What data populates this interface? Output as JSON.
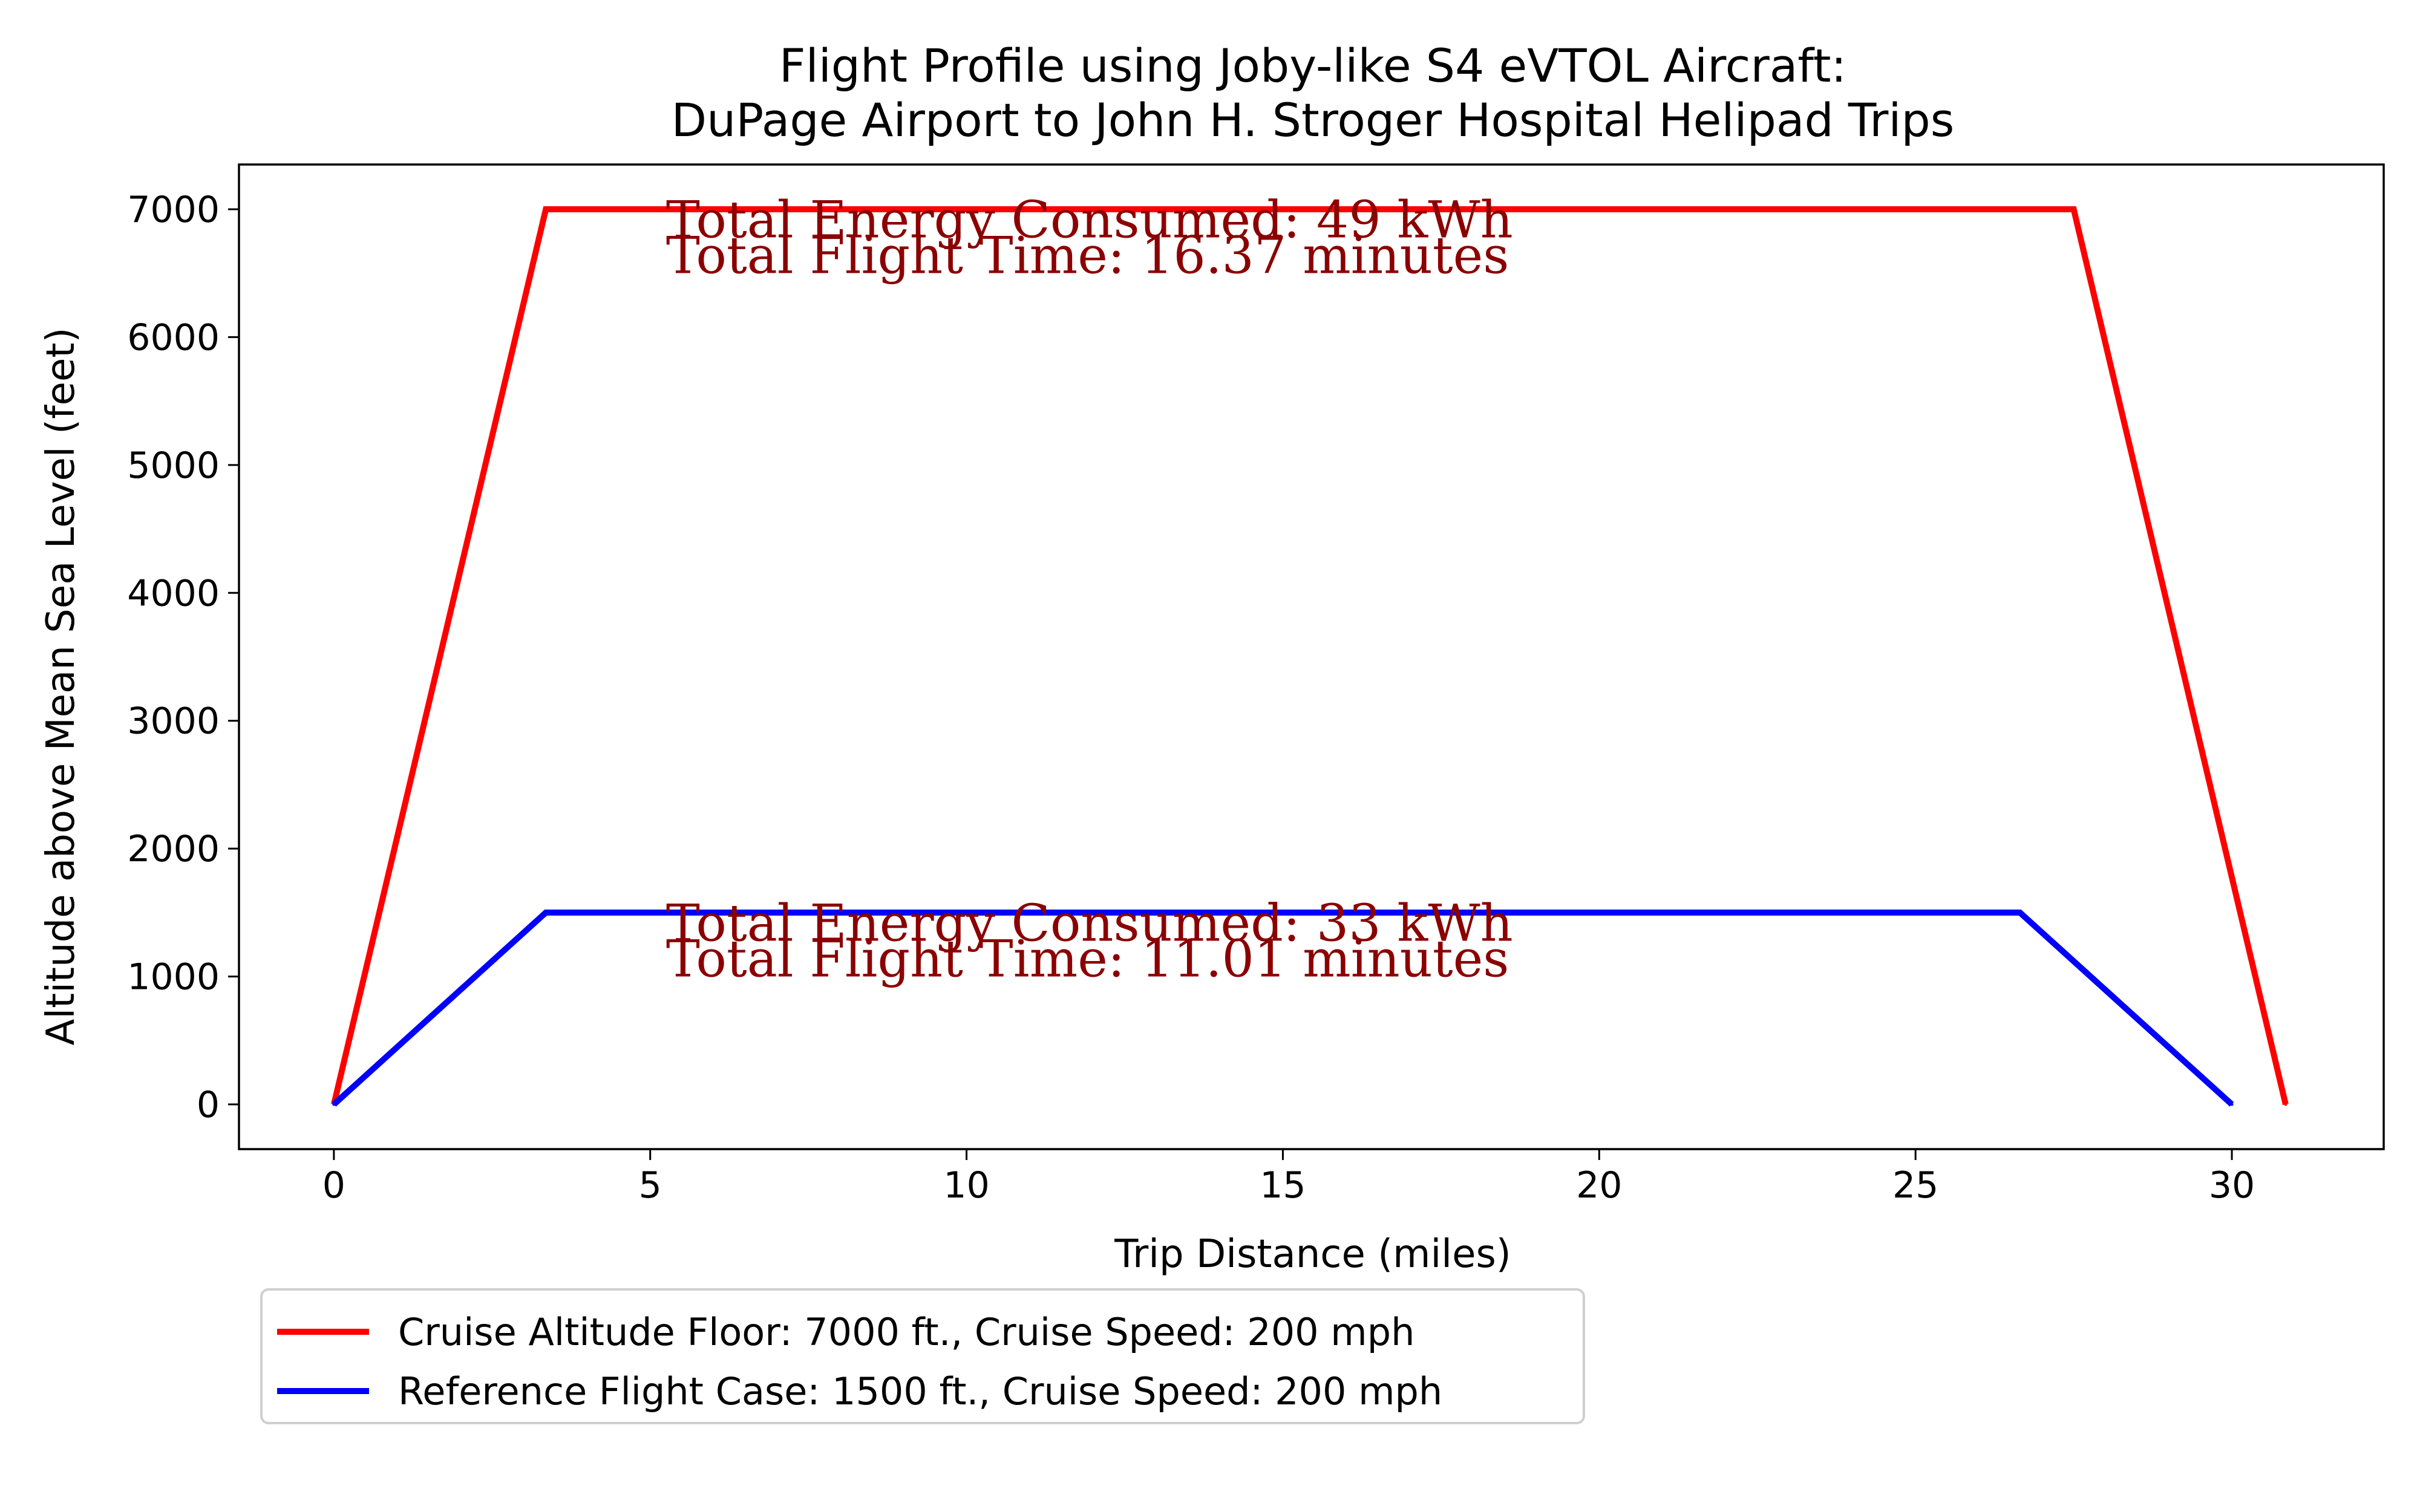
{
  "chart_data": {
    "type": "line",
    "title_lines": [
      "Flight Profile using Joby-like S4 eVTOL Aircraft:",
      "DuPage Airport to John H. Stroger Hospital Helipad Trips"
    ],
    "xlabel": "Trip Distance (miles)",
    "ylabel": "Altitude above Mean Sea Level (feet)",
    "xlim": [
      -1.5,
      32.4
    ],
    "ylim": [
      -350,
      7350
    ],
    "xticks": [
      0,
      5,
      10,
      15,
      20,
      25,
      30
    ],
    "yticks": [
      0,
      1000,
      2000,
      3000,
      4000,
      5000,
      6000,
      7000
    ],
    "grid": false,
    "legend_position": "below-left",
    "series": [
      {
        "name": "Cruise Altitude Floor: 7000 ft., Cruise Speed: 200 mph",
        "color": "#ff0000",
        "x": [
          0,
          3.35,
          27.5,
          30.85
        ],
        "y": [
          0,
          7000,
          7000,
          0
        ]
      },
      {
        "name": "Reference Flight Case: 1500 ft., Cruise Speed: 200 mph",
        "color": "#0000ff",
        "x": [
          0,
          3.35,
          26.65,
          30.0
        ],
        "y": [
          0,
          1500,
          1500,
          0
        ]
      }
    ],
    "annotations": [
      {
        "text": "Total Energy Consumed: 49 kWh",
        "x": 5.25,
        "y": 6780,
        "color": "#8b0000"
      },
      {
        "text": "Total Flight Time: 16.37 minutes",
        "x": 5.25,
        "y": 6500,
        "color": "#8b0000"
      },
      {
        "text": "Total Energy Consumed: 33 kWh",
        "x": 5.25,
        "y": 1280,
        "color": "#8b0000"
      },
      {
        "text": "Total Flight Time: 11.01 minutes",
        "x": 5.25,
        "y": 1000,
        "color": "#8b0000"
      }
    ]
  }
}
